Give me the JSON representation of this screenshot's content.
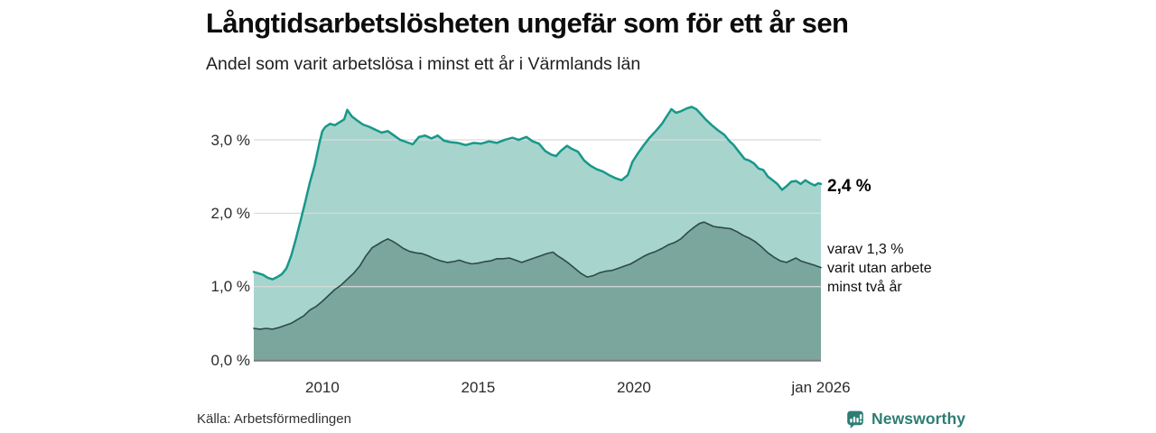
{
  "header": {
    "title": "Långtidsarbetslösheten ungefär som för ett år sen",
    "subtitle": "Andel som varit arbetslösa i minst ett år i Värmlands län"
  },
  "annotations": {
    "latest_value": "2,4 %",
    "secondary_line1": "varav 1,3 %",
    "secondary_line2": "varit utan arbete",
    "secondary_line3": "minst två år"
  },
  "footer": {
    "source": "Källa: Arbetsförmedlingen",
    "brand_name": "Newsworthy"
  },
  "colors": {
    "series1_line": "#17988a",
    "series1_fill": "#a7d4cc",
    "series2_line": "#2d4b46",
    "series2_fill": "#7ba69d",
    "grid": "#d8dbda",
    "baseline": "#797b7c",
    "brand": "#2d7d74"
  },
  "chart_data": {
    "type": "area",
    "title": "Långtidsarbetslösheten ungefär som för ett år sen",
    "subtitle": "Andel som varit arbetslösa i minst ett år i Värmlands län",
    "unit": "%",
    "x_axis": {
      "range": [
        2007.8,
        2026.0
      ],
      "ticks": [
        2010,
        2015,
        2020,
        2026
      ],
      "tick_labels": [
        "2010",
        "2015",
        "2020",
        "jan 2026"
      ]
    },
    "y_axis": {
      "range": [
        0,
        3.6
      ],
      "ticks": [
        0,
        1,
        2,
        3
      ],
      "tick_labels": [
        "0,0 %",
        "1,0 %",
        "2,0 %",
        "3,0 %"
      ],
      "grid_ticks": [
        1,
        2,
        3
      ]
    },
    "series": [
      {
        "name": "Andel arbetslösa minst ett år",
        "end_value": 2.4,
        "end_label": "2,4 %",
        "points": [
          [
            2007.8,
            1.2
          ],
          [
            2007.95,
            1.18
          ],
          [
            2008.1,
            1.16
          ],
          [
            2008.25,
            1.12
          ],
          [
            2008.4,
            1.1
          ],
          [
            2008.55,
            1.13
          ],
          [
            2008.7,
            1.17
          ],
          [
            2008.85,
            1.25
          ],
          [
            2009.0,
            1.42
          ],
          [
            2009.15,
            1.65
          ],
          [
            2009.3,
            1.9
          ],
          [
            2009.45,
            2.15
          ],
          [
            2009.6,
            2.42
          ],
          [
            2009.75,
            2.65
          ],
          [
            2009.9,
            2.95
          ],
          [
            2010.0,
            3.12
          ],
          [
            2010.1,
            3.18
          ],
          [
            2010.25,
            3.22
          ],
          [
            2010.4,
            3.2
          ],
          [
            2010.55,
            3.24
          ],
          [
            2010.7,
            3.28
          ],
          [
            2010.8,
            3.41
          ],
          [
            2010.95,
            3.32
          ],
          [
            2011.1,
            3.27
          ],
          [
            2011.3,
            3.21
          ],
          [
            2011.5,
            3.18
          ],
          [
            2011.7,
            3.14
          ],
          [
            2011.9,
            3.1
          ],
          [
            2012.1,
            3.12
          ],
          [
            2012.3,
            3.06
          ],
          [
            2012.5,
            3.0
          ],
          [
            2012.7,
            2.97
          ],
          [
            2012.9,
            2.94
          ],
          [
            2013.1,
            3.04
          ],
          [
            2013.3,
            3.06
          ],
          [
            2013.5,
            3.02
          ],
          [
            2013.7,
            3.06
          ],
          [
            2013.9,
            2.99
          ],
          [
            2014.1,
            2.97
          ],
          [
            2014.35,
            2.96
          ],
          [
            2014.6,
            2.93
          ],
          [
            2014.85,
            2.96
          ],
          [
            2015.1,
            2.95
          ],
          [
            2015.35,
            2.98
          ],
          [
            2015.6,
            2.96
          ],
          [
            2015.85,
            3.0
          ],
          [
            2016.1,
            3.03
          ],
          [
            2016.3,
            3.0
          ],
          [
            2016.55,
            3.04
          ],
          [
            2016.75,
            2.98
          ],
          [
            2016.95,
            2.95
          ],
          [
            2017.15,
            2.85
          ],
          [
            2017.35,
            2.8
          ],
          [
            2017.5,
            2.78
          ],
          [
            2017.65,
            2.85
          ],
          [
            2017.85,
            2.92
          ],
          [
            2018.0,
            2.88
          ],
          [
            2018.2,
            2.84
          ],
          [
            2018.4,
            2.72
          ],
          [
            2018.6,
            2.65
          ],
          [
            2018.8,
            2.6
          ],
          [
            2019.0,
            2.57
          ],
          [
            2019.2,
            2.52
          ],
          [
            2019.4,
            2.48
          ],
          [
            2019.6,
            2.45
          ],
          [
            2019.8,
            2.52
          ],
          [
            2019.95,
            2.7
          ],
          [
            2020.1,
            2.8
          ],
          [
            2020.3,
            2.92
          ],
          [
            2020.5,
            3.03
          ],
          [
            2020.7,
            3.12
          ],
          [
            2020.9,
            3.22
          ],
          [
            2021.05,
            3.32
          ],
          [
            2021.2,
            3.42
          ],
          [
            2021.35,
            3.37
          ],
          [
            2021.5,
            3.39
          ],
          [
            2021.7,
            3.43
          ],
          [
            2021.85,
            3.45
          ],
          [
            2022.0,
            3.42
          ],
          [
            2022.15,
            3.35
          ],
          [
            2022.3,
            3.28
          ],
          [
            2022.5,
            3.2
          ],
          [
            2022.7,
            3.13
          ],
          [
            2022.9,
            3.07
          ],
          [
            2023.05,
            2.99
          ],
          [
            2023.2,
            2.93
          ],
          [
            2023.4,
            2.82
          ],
          [
            2023.55,
            2.74
          ],
          [
            2023.7,
            2.72
          ],
          [
            2023.85,
            2.68
          ],
          [
            2024.0,
            2.61
          ],
          [
            2024.15,
            2.59
          ],
          [
            2024.3,
            2.5
          ],
          [
            2024.45,
            2.45
          ],
          [
            2024.6,
            2.4
          ],
          [
            2024.75,
            2.32
          ],
          [
            2024.9,
            2.37
          ],
          [
            2025.05,
            2.43
          ],
          [
            2025.2,
            2.44
          ],
          [
            2025.35,
            2.4
          ],
          [
            2025.5,
            2.45
          ],
          [
            2025.65,
            2.41
          ],
          [
            2025.8,
            2.38
          ],
          [
            2025.92,
            2.41
          ],
          [
            2026.0,
            2.4
          ]
        ]
      },
      {
        "name": "varav utan arbete minst två år",
        "end_value": 1.3,
        "end_label": "varav 1,3 % varit utan arbete minst två år",
        "points": [
          [
            2007.8,
            0.43
          ],
          [
            2008.0,
            0.42
          ],
          [
            2008.2,
            0.43
          ],
          [
            2008.4,
            0.42
          ],
          [
            2008.6,
            0.44
          ],
          [
            2008.8,
            0.47
          ],
          [
            2009.0,
            0.5
          ],
          [
            2009.2,
            0.55
          ],
          [
            2009.4,
            0.6
          ],
          [
            2009.6,
            0.68
          ],
          [
            2009.8,
            0.73
          ],
          [
            2010.0,
            0.8
          ],
          [
            2010.2,
            0.88
          ],
          [
            2010.4,
            0.96
          ],
          [
            2010.6,
            1.02
          ],
          [
            2010.8,
            1.1
          ],
          [
            2011.0,
            1.18
          ],
          [
            2011.2,
            1.28
          ],
          [
            2011.4,
            1.42
          ],
          [
            2011.6,
            1.53
          ],
          [
            2011.8,
            1.58
          ],
          [
            2011.95,
            1.62
          ],
          [
            2012.1,
            1.65
          ],
          [
            2012.25,
            1.62
          ],
          [
            2012.4,
            1.58
          ],
          [
            2012.6,
            1.52
          ],
          [
            2012.8,
            1.48
          ],
          [
            2013.0,
            1.46
          ],
          [
            2013.2,
            1.45
          ],
          [
            2013.4,
            1.42
          ],
          [
            2013.6,
            1.38
          ],
          [
            2013.8,
            1.35
          ],
          [
            2014.0,
            1.33
          ],
          [
            2014.2,
            1.34
          ],
          [
            2014.4,
            1.36
          ],
          [
            2014.6,
            1.33
          ],
          [
            2014.8,
            1.31
          ],
          [
            2015.0,
            1.32
          ],
          [
            2015.2,
            1.34
          ],
          [
            2015.4,
            1.35
          ],
          [
            2015.6,
            1.38
          ],
          [
            2015.8,
            1.38
          ],
          [
            2016.0,
            1.39
          ],
          [
            2016.2,
            1.36
          ],
          [
            2016.4,
            1.33
          ],
          [
            2016.6,
            1.36
          ],
          [
            2016.8,
            1.39
          ],
          [
            2017.0,
            1.42
          ],
          [
            2017.2,
            1.45
          ],
          [
            2017.4,
            1.47
          ],
          [
            2017.55,
            1.42
          ],
          [
            2017.7,
            1.38
          ],
          [
            2017.9,
            1.32
          ],
          [
            2018.1,
            1.25
          ],
          [
            2018.3,
            1.18
          ],
          [
            2018.5,
            1.13
          ],
          [
            2018.7,
            1.15
          ],
          [
            2018.9,
            1.19
          ],
          [
            2019.1,
            1.21
          ],
          [
            2019.3,
            1.22
          ],
          [
            2019.5,
            1.25
          ],
          [
            2019.7,
            1.28
          ],
          [
            2019.9,
            1.31
          ],
          [
            2020.1,
            1.36
          ],
          [
            2020.3,
            1.41
          ],
          [
            2020.5,
            1.45
          ],
          [
            2020.7,
            1.48
          ],
          [
            2020.9,
            1.52
          ],
          [
            2021.1,
            1.57
          ],
          [
            2021.3,
            1.6
          ],
          [
            2021.5,
            1.65
          ],
          [
            2021.7,
            1.73
          ],
          [
            2021.9,
            1.8
          ],
          [
            2022.1,
            1.86
          ],
          [
            2022.25,
            1.88
          ],
          [
            2022.4,
            1.85
          ],
          [
            2022.55,
            1.82
          ],
          [
            2022.7,
            1.81
          ],
          [
            2022.9,
            1.8
          ],
          [
            2023.1,
            1.79
          ],
          [
            2023.3,
            1.75
          ],
          [
            2023.5,
            1.7
          ],
          [
            2023.7,
            1.66
          ],
          [
            2023.9,
            1.61
          ],
          [
            2024.1,
            1.54
          ],
          [
            2024.3,
            1.46
          ],
          [
            2024.5,
            1.4
          ],
          [
            2024.7,
            1.35
          ],
          [
            2024.9,
            1.33
          ],
          [
            2025.05,
            1.36
          ],
          [
            2025.2,
            1.39
          ],
          [
            2025.35,
            1.35
          ],
          [
            2025.5,
            1.33
          ],
          [
            2025.65,
            1.31
          ],
          [
            2025.8,
            1.29
          ],
          [
            2026.0,
            1.26
          ]
        ]
      }
    ],
    "legend_position": "right-annotations",
    "grid": true
  }
}
